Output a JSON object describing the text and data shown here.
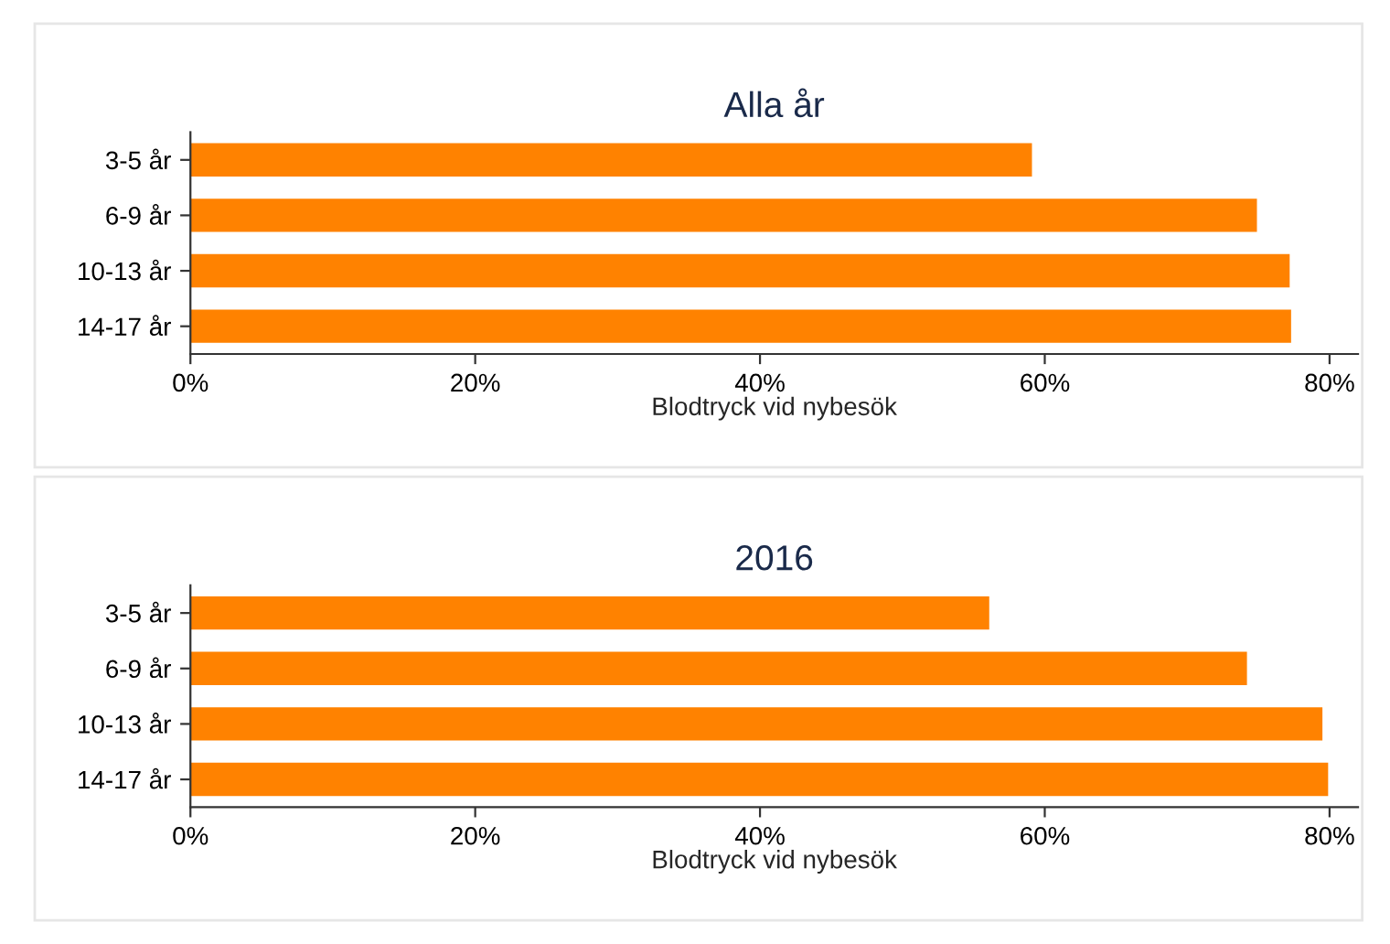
{
  "chart_data": [
    {
      "type": "bar",
      "orientation": "horizontal",
      "title": "Alla år",
      "xlabel": "Blodtryck vid nybesök",
      "categories": [
        "3-5 år",
        "6-9 år",
        "10-13 år",
        "14-17 år"
      ],
      "values": [
        59.1,
        74.9,
        77.2,
        77.3
      ],
      "color": "#ff8200",
      "xlim": [
        0,
        82
      ],
      "xticks": [
        {
          "value": 0,
          "label": "0%"
        },
        {
          "value": 20,
          "label": "20%"
        },
        {
          "value": 40,
          "label": "40%"
        },
        {
          "value": 60,
          "label": "60%"
        },
        {
          "value": 80,
          "label": "80%"
        }
      ],
      "grid": false,
      "legend": false
    },
    {
      "type": "bar",
      "orientation": "horizontal",
      "title": "2016",
      "xlabel": "Blodtryck vid nybesök",
      "categories": [
        "3-5 år",
        "6-9 år",
        "10-13 år",
        "14-17 år"
      ],
      "values": [
        56.1,
        74.2,
        79.5,
        79.9
      ],
      "color": "#ff8200",
      "xlim": [
        0,
        82
      ],
      "xticks": [
        {
          "value": 0,
          "label": "0%"
        },
        {
          "value": 20,
          "label": "20%"
        },
        {
          "value": 40,
          "label": "40%"
        },
        {
          "value": 60,
          "label": "60%"
        },
        {
          "value": 80,
          "label": "80%"
        }
      ],
      "grid": false,
      "legend": false
    }
  ]
}
